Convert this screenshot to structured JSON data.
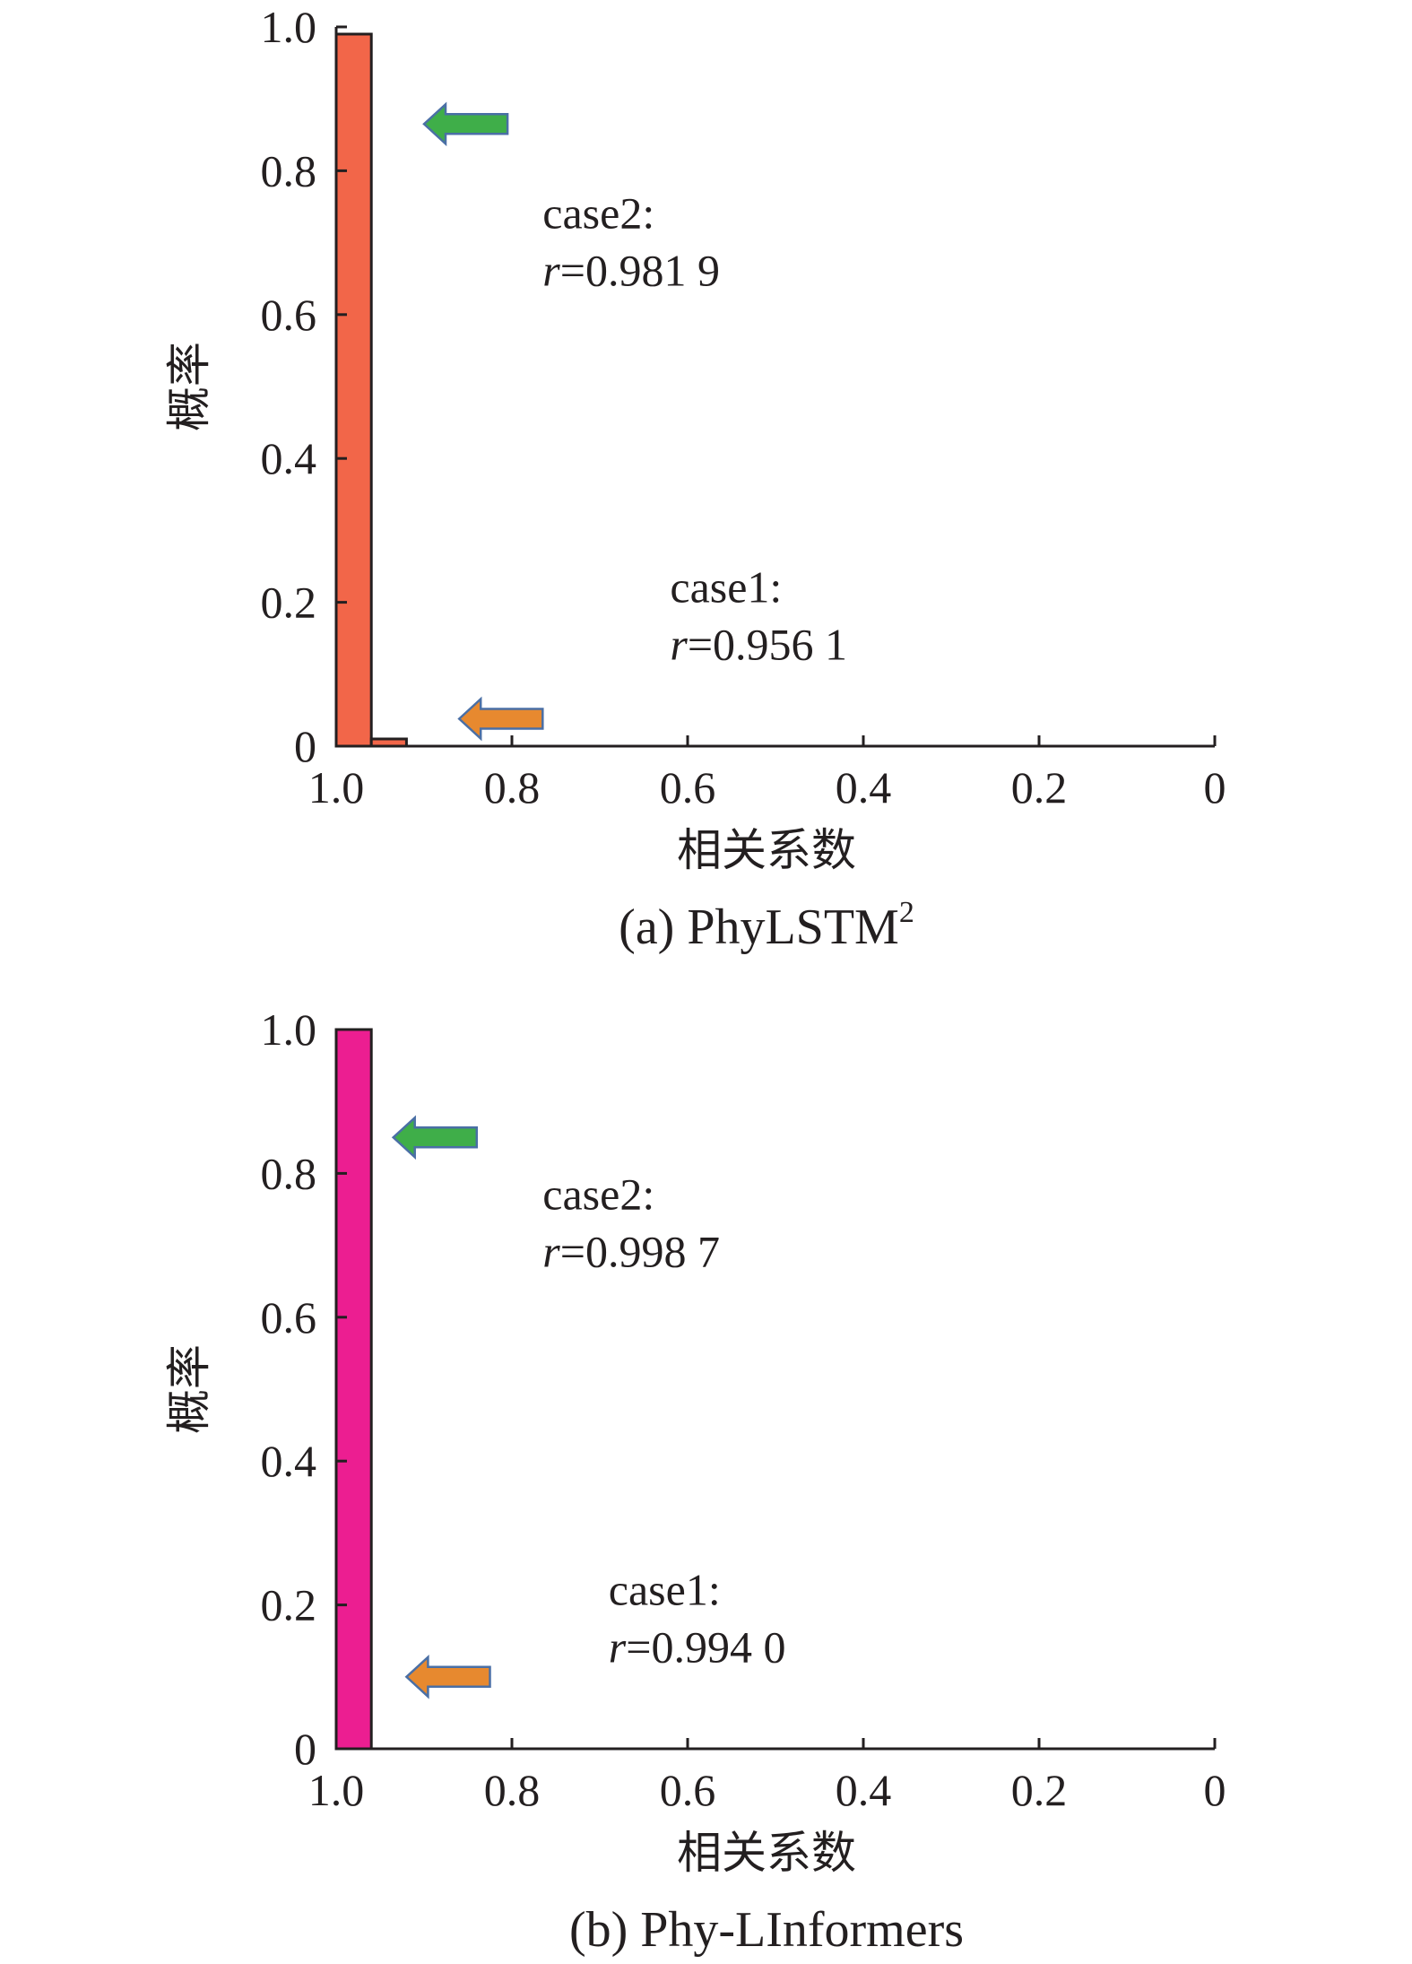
{
  "chart_data": [
    {
      "type": "bar",
      "panel_id": "a",
      "caption": "(a) PhyLSTM",
      "caption_sup": "2",
      "xlabel": "相关系数",
      "ylabel": "概率",
      "xlim": [
        1.0,
        0
      ],
      "ylim": [
        0,
        1.0
      ],
      "x_axis_reversed": true,
      "bin_width": 0.04,
      "xticks": [
        "1.0",
        "0.8",
        "0.6",
        "0.4",
        "0.2",
        "0"
      ],
      "yticks": [
        "0",
        "0.2",
        "0.4",
        "0.6",
        "0.8",
        "1.0"
      ],
      "bars": [
        {
          "x_start": 1.0,
          "x_end": 0.96,
          "value": 0.99
        },
        {
          "x_start": 0.96,
          "x_end": 0.92,
          "value": 0.01
        }
      ],
      "bar_color": "#f26649",
      "annotations": [
        {
          "label": "case2:",
          "r_prefix": "r",
          "r_value": "=0.981 9",
          "text_x": 0.765,
          "text_y": 0.72,
          "arrow_color": "#3fae49",
          "arrow_tip_x": 0.9,
          "arrow_tail_x": 0.805,
          "arrow_y": 0.865
        },
        {
          "label": "case1:",
          "r_prefix": "r",
          "r_value": "=0.956 1",
          "text_x": 0.62,
          "text_y": 0.2,
          "arrow_color": "#e7892f",
          "arrow_tip_x": 0.86,
          "arrow_tail_x": 0.765,
          "arrow_y": 0.038
        }
      ]
    },
    {
      "type": "bar",
      "panel_id": "b",
      "caption": "(b) Phy-LInformers",
      "caption_sup": "",
      "xlabel": "相关系数",
      "ylabel": "概率",
      "xlim": [
        1.0,
        0
      ],
      "ylim": [
        0,
        1.0
      ],
      "x_axis_reversed": true,
      "bin_width": 0.04,
      "xticks": [
        "1.0",
        "0.8",
        "0.6",
        "0.4",
        "0.2",
        "0"
      ],
      "yticks": [
        "0",
        "0.2",
        "0.4",
        "0.6",
        "0.8",
        "1.0"
      ],
      "bars": [
        {
          "x_start": 1.0,
          "x_end": 0.96,
          "value": 1.0
        }
      ],
      "bar_color": "#ec1e91",
      "annotations": [
        {
          "label": "case2:",
          "r_prefix": "r",
          "r_value": "=0.998 7",
          "text_x": 0.765,
          "text_y": 0.75,
          "arrow_color": "#3fae49",
          "arrow_tip_x": 0.935,
          "arrow_tail_x": 0.84,
          "arrow_y": 0.85
        },
        {
          "label": "case1:",
          "r_prefix": "r",
          "r_value": "=0.994 0",
          "text_x": 0.69,
          "text_y": 0.2,
          "arrow_color": "#e7892f",
          "arrow_tip_x": 0.92,
          "arrow_tail_x": 0.825,
          "arrow_y": 0.1
        }
      ]
    }
  ]
}
